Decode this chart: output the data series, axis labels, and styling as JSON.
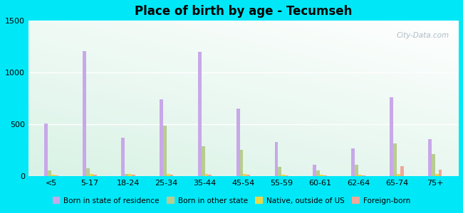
{
  "title": "Place of birth by age - Tecumseh",
  "categories": [
    "<5",
    "5-17",
    "18-24",
    "25-34",
    "35-44",
    "45-54",
    "55-59",
    "60-61",
    "62-64",
    "65-74",
    "75+"
  ],
  "series": {
    "Born in state of residence": [
      510,
      1210,
      370,
      740,
      1200,
      655,
      330,
      110,
      270,
      760,
      360
    ],
    "Born in other state": [
      55,
      80,
      20,
      490,
      290,
      255,
      90,
      55,
      110,
      315,
      215
    ],
    "Native, outside of US": [
      15,
      20,
      20,
      20,
      20,
      20,
      15,
      15,
      15,
      20,
      20
    ],
    "Foreign-born": [
      10,
      15,
      15,
      15,
      15,
      15,
      10,
      10,
      10,
      95,
      65
    ]
  },
  "colors": {
    "Born in state of residence": "#c8a8e8",
    "Born in other state": "#b8cc90",
    "Native, outside of US": "#e8d848",
    "Foreign-born": "#f0a898"
  },
  "ylim": [
    0,
    1500
  ],
  "yticks": [
    0,
    500,
    1000,
    1500
  ],
  "outer_color": "#00e8f8",
  "bar_width": 0.09,
  "watermark": "City-Data.com"
}
